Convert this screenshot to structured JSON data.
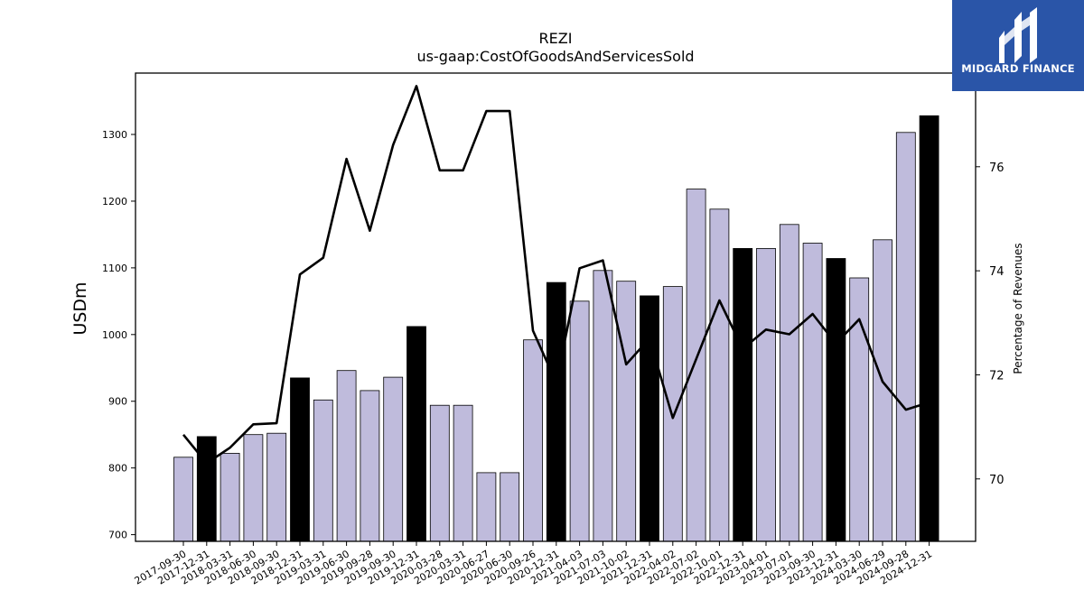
{
  "chart_data": {
    "type": "bar",
    "title": "REZI",
    "subtitle": "us-gaap:CostOfGoodsAndServicesSold",
    "ylabel": "USDm",
    "y2label": "Percentage of Revenues",
    "ylim": [
      690,
      1392
    ],
    "y2lim": [
      68.8,
      77.8
    ],
    "yticks": [
      700,
      800,
      900,
      1000,
      1100,
      1200,
      1300
    ],
    "y2ticks": [
      70,
      72,
      74,
      76
    ],
    "categories": [
      "2017-09-30",
      "2017-12-31",
      "2018-03-31",
      "2018-06-30",
      "2018-09-30",
      "2018-12-31",
      "2019-03-31",
      "2019-06-30",
      "2019-09-28",
      "2019-09-30",
      "2019-12-31",
      "2020-03-28",
      "2020-03-31",
      "2020-06-27",
      "2020-06-30",
      "2020-09-26",
      "2020-12-31",
      "2021-04-03",
      "2021-07-03",
      "2021-10-02",
      "2021-12-31",
      "2022-04-02",
      "2022-07-02",
      "2022-10-01",
      "2022-12-31",
      "2023-04-01",
      "2023-07-01",
      "2023-09-30",
      "2023-12-31",
      "2024-03-30",
      "2024-06-29",
      "2024-09-28",
      "2024-12-31"
    ],
    "series": [
      {
        "kind": "bar",
        "values": [
          816,
          847,
          822,
          850,
          852,
          935,
          902,
          946,
          916,
          936,
          1012,
          894,
          894,
          793,
          793,
          992,
          1078,
          1050,
          1096,
          1080,
          1058,
          1072,
          1218,
          1188,
          1129,
          1129,
          1165,
          1137,
          1114,
          1085,
          1142,
          1303,
          1328
        ],
        "highlight": [
          false,
          true,
          false,
          false,
          false,
          true,
          false,
          false,
          false,
          false,
          true,
          false,
          false,
          false,
          false,
          false,
          true,
          false,
          false,
          false,
          true,
          false,
          false,
          false,
          true,
          false,
          false,
          false,
          true,
          false,
          false,
          false,
          true
        ]
      },
      {
        "kind": "line",
        "axis": "right",
        "values": [
          70.85,
          70.3,
          70.6,
          71.05,
          71.07,
          73.93,
          74.25,
          76.15,
          74.77,
          76.42,
          77.55,
          75.93,
          75.93,
          77.07,
          77.07,
          72.85,
          71.85,
          74.05,
          74.2,
          72.2,
          72.7,
          71.17,
          72.3,
          73.43,
          72.5,
          72.87,
          72.78,
          73.17,
          72.6,
          73.07,
          71.87,
          71.33,
          71.47
        ]
      }
    ],
    "colors": {
      "bar": "#bfbbdc",
      "bar_highlight": "#000000",
      "line": "#000000"
    },
    "legend": "none",
    "grid": false
  },
  "logo": {
    "text": "MIDGARD FINANCE",
    "bg": "#2a55a8"
  }
}
